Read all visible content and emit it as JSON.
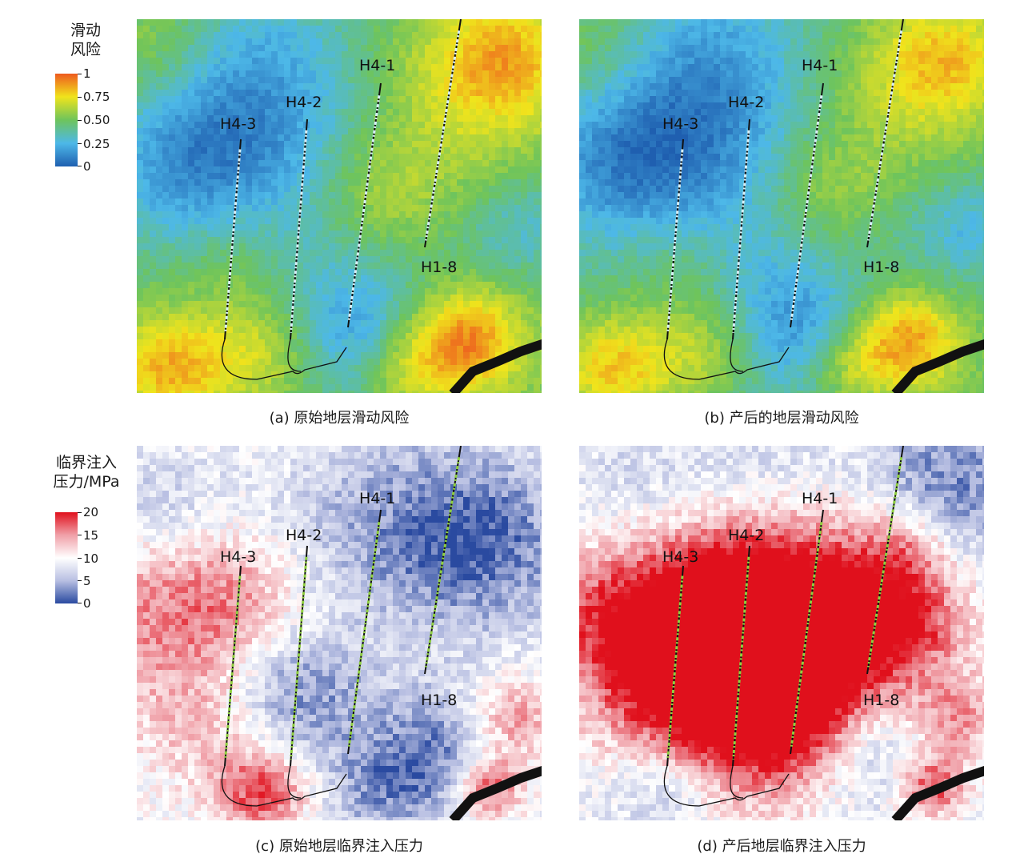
{
  "legend_top": {
    "title_line1": "滑动",
    "title_line2": "风险",
    "ticks": [
      "1",
      "0.75",
      "0.50",
      "0.25",
      "0"
    ]
  },
  "legend_bottom": {
    "title_line1": "临界注入",
    "title_line2": "压力/MPa",
    "ticks": [
      "20",
      "15",
      "10",
      "5",
      "0"
    ]
  },
  "wells": [
    "H4-1",
    "H4-2",
    "H4-3",
    "H1-8"
  ],
  "panels": [
    {
      "caption": "(a) 原始地层滑动风险",
      "scheme": "risk",
      "variant": 0
    },
    {
      "caption": "(b) 产后的地层滑动风险",
      "scheme": "risk",
      "variant": 1
    },
    {
      "caption": "(c) 原始地层临界注入压力",
      "scheme": "pressure",
      "variant": 0
    },
    {
      "caption": "(d) 产后地层临界注入压力",
      "scheme": "pressure",
      "variant": 1
    }
  ],
  "colors": {
    "risk_ramp": [
      "#1f5fb0",
      "#4db8e8",
      "#6ec45c",
      "#f0e41c",
      "#ee5a1e"
    ],
    "pressure_ramp": [
      "#2a4aa0",
      "#b8bfe2",
      "#ffffff",
      "#f0a0a8",
      "#e0101c"
    ]
  }
}
